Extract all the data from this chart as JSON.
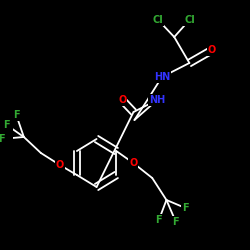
{
  "bg_color": "#000000",
  "bond_color": "#ffffff",
  "atom_colors": {
    "N": "#3333ff",
    "O": "#ff0000",
    "F": "#33aa33",
    "Cl": "#33aa33"
  },
  "figsize": [
    2.5,
    2.5
  ],
  "dpi": 100
}
